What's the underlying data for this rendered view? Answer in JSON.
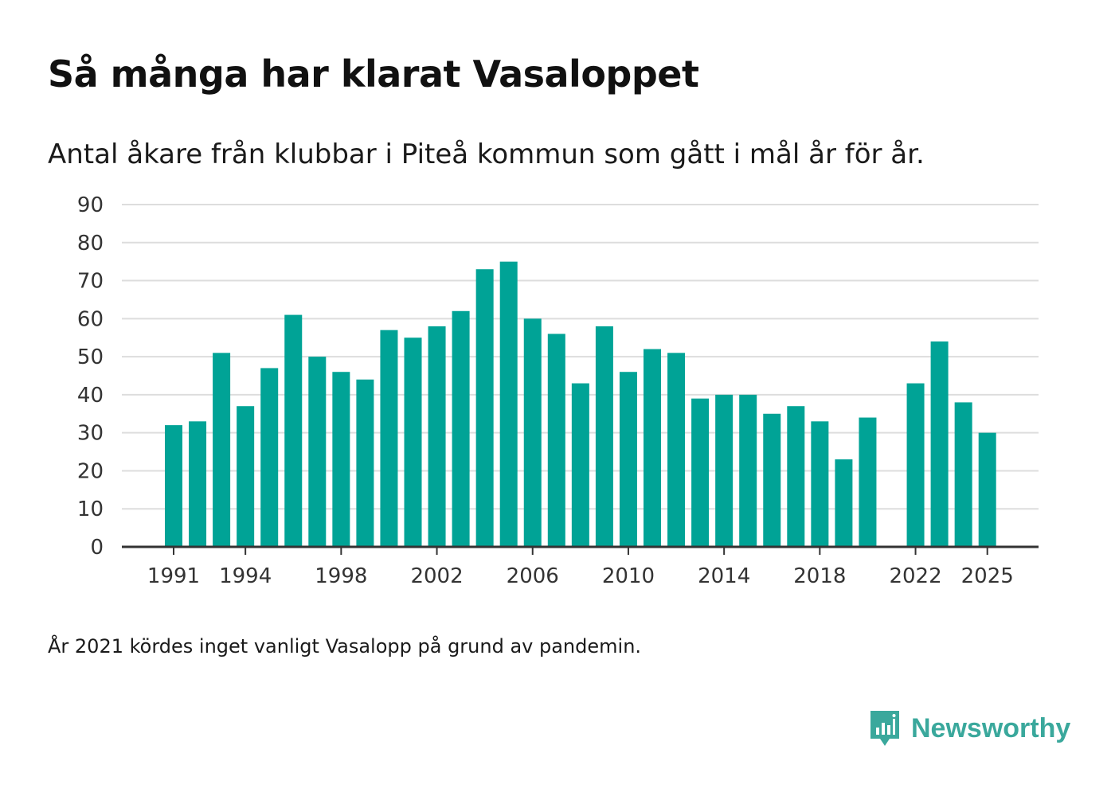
{
  "title": "Så många har klarat Vasaloppet",
  "subtitle": "Antal åkare från klubbar i Piteå kommun som gått i mål år för år.",
  "note": "År 2021 kördes inget vanligt Vasalopp på grund av pandemin.",
  "brand": {
    "name": "Newsworthy",
    "color": "#3aa89c",
    "icon": "newsworthy-logo-icon"
  },
  "colors": {
    "bar": "#00a396",
    "grid": "#dddddd",
    "axis": "#333333"
  },
  "chart_data": {
    "type": "bar",
    "title": "Så många har klarat Vasaloppet",
    "xlabel": "",
    "ylabel": "",
    "ylim": [
      0,
      90
    ],
    "yticks": [
      0,
      10,
      20,
      30,
      40,
      50,
      60,
      70,
      80,
      90
    ],
    "xticks": [
      1991,
      1994,
      1998,
      2002,
      2006,
      2010,
      2014,
      2018,
      2022,
      2025
    ],
    "grid": true,
    "categories": [
      1991,
      1992,
      1993,
      1994,
      1995,
      1996,
      1997,
      1998,
      1999,
      2000,
      2001,
      2002,
      2003,
      2004,
      2005,
      2006,
      2007,
      2008,
      2009,
      2010,
      2011,
      2012,
      2013,
      2014,
      2015,
      2016,
      2017,
      2018,
      2019,
      2020,
      2021,
      2022,
      2023,
      2024,
      2025
    ],
    "values": [
      32,
      33,
      51,
      37,
      47,
      61,
      50,
      46,
      44,
      57,
      55,
      58,
      62,
      73,
      75,
      60,
      56,
      43,
      58,
      46,
      52,
      51,
      39,
      40,
      40,
      35,
      37,
      33,
      23,
      34,
      null,
      43,
      54,
      38,
      30
    ]
  }
}
